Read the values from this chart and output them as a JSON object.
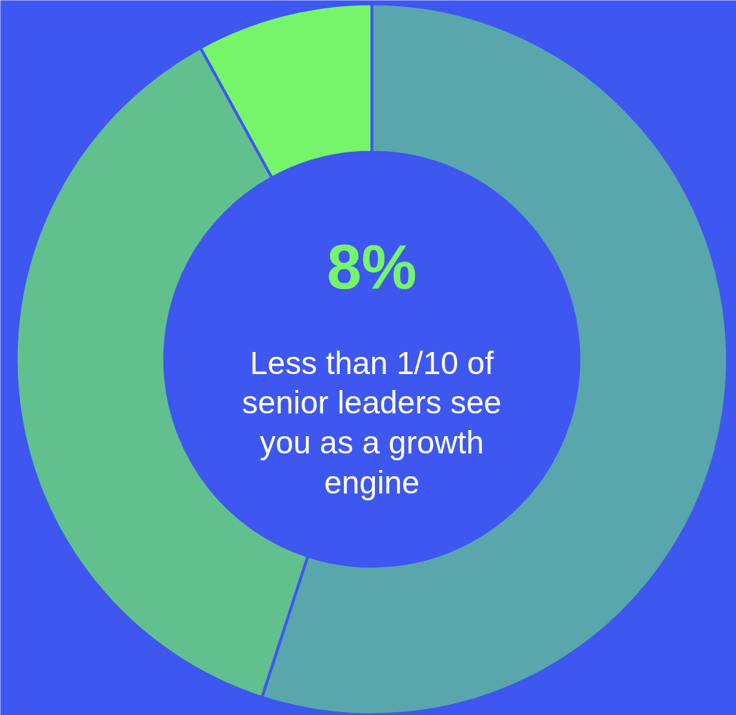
{
  "chart_data": {
    "type": "donut",
    "categories": [
      null,
      null,
      null
    ],
    "values": [
      55,
      37,
      8
    ],
    "colors": [
      "#5aa6ad",
      "#62c08f",
      "#76f56a"
    ],
    "annotations": [
      "8%",
      "Less than 1/10 of senior leaders see you as a growth engine"
    ]
  }
}
